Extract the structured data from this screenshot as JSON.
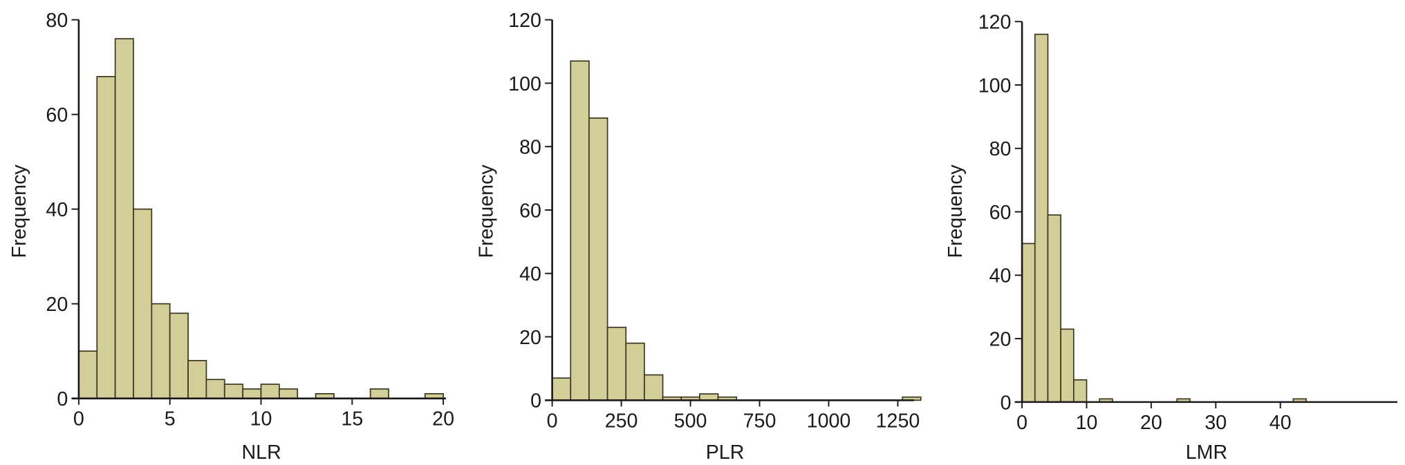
{
  "colors": {
    "bar_fill": "#d3cd97",
    "bar_stroke": "#3b3620",
    "axis": "#1a1a1a"
  },
  "chart_data": [
    {
      "type": "bar",
      "subtype": "histogram",
      "xlabel": "NLR",
      "ylabel": "Frequency",
      "xlim": [
        0,
        20
      ],
      "ylim": [
        0,
        80
      ],
      "xticks": [
        0,
        5,
        10,
        15,
        20
      ],
      "yticks": [
        0,
        20,
        40,
        60,
        80
      ],
      "bin_edges_start": 0,
      "bin_width": 1,
      "values": [
        10,
        68,
        76,
        40,
        20,
        18,
        8,
        4,
        3,
        2,
        3,
        2,
        0,
        1,
        0,
        0,
        2,
        0,
        0,
        1
      ],
      "grid": false
    },
    {
      "type": "bar",
      "subtype": "histogram",
      "xlabel": "PLR",
      "ylabel": "Frequency",
      "xlim": [
        0,
        1333
      ],
      "ylim": [
        0,
        120
      ],
      "xticks": [
        0,
        250,
        500,
        750,
        1000,
        1250
      ],
      "yticks": [
        0,
        20,
        40,
        60,
        80,
        100,
        120
      ],
      "bin_edges_start": 0,
      "bin_width": 66.67,
      "values": [
        7,
        107,
        89,
        23,
        18,
        8,
        1,
        1,
        2,
        1,
        0,
        0,
        0,
        0,
        0,
        0,
        0,
        0,
        0,
        1
      ],
      "grid": false
    },
    {
      "type": "bar",
      "subtype": "histogram",
      "xlabel": "LMR",
      "ylabel": "Frequency",
      "xlim": [
        0,
        44
      ],
      "ylim": [
        0,
        120
      ],
      "xticks": [
        0,
        10,
        20,
        30,
        40
      ],
      "yticks": [
        0,
        20,
        40,
        60,
        80,
        100,
        120
      ],
      "bin_edges_start": 0,
      "bin_width": 2,
      "values": [
        50,
        116,
        59,
        23,
        7,
        0,
        1,
        0,
        0,
        0,
        0,
        0,
        1,
        0,
        0,
        0,
        0,
        0,
        0,
        0,
        0,
        1
      ],
      "grid": false
    }
  ]
}
